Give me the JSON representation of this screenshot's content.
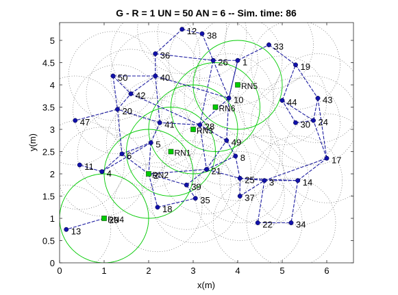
{
  "chart_data": {
    "type": "scatter",
    "title": "G - R = 1 UN = 50 AN = 6 -- Sim. time: 86",
    "xlabel": "x(m)",
    "ylabel": "y(m)",
    "xlim": [
      0,
      6.6
    ],
    "ylim": [
      0,
      5.4
    ],
    "xticks": [
      0,
      1,
      2,
      3,
      4,
      5,
      6
    ],
    "yticks": [
      0,
      0.5,
      1,
      1.5,
      2,
      2.5,
      3,
      3.5,
      4,
      4.5,
      5
    ],
    "grid": false,
    "colors": {
      "user": "#1111aa",
      "anchor": "#00cc00",
      "link": "#1a1aa0",
      "range": "#666666",
      "anchor_range": "#00cc00"
    },
    "nodes": [
      {
        "label": "1",
        "x": 4.0,
        "y": 4.55
      },
      {
        "label": "3",
        "x": 4.6,
        "y": 1.85
      },
      {
        "label": "4",
        "x": 0.95,
        "y": 2.05
      },
      {
        "label": "5",
        "x": 2.05,
        "y": 2.7
      },
      {
        "label": "6",
        "x": 1.4,
        "y": 2.45
      },
      {
        "label": "8",
        "x": 3.95,
        "y": 2.4
      },
      {
        "label": "10",
        "x": 3.8,
        "y": 3.7
      },
      {
        "label": "11",
        "x": 0.45,
        "y": 2.2
      },
      {
        "label": "12",
        "x": 2.75,
        "y": 5.25
      },
      {
        "label": "13",
        "x": 0.15,
        "y": 0.75
      },
      {
        "label": "14",
        "x": 5.35,
        "y": 1.85
      },
      {
        "label": "17",
        "x": 6.0,
        "y": 2.35
      },
      {
        "label": "18",
        "x": 2.2,
        "y": 1.25
      },
      {
        "label": "19",
        "x": 5.3,
        "y": 4.45
      },
      {
        "label": "20",
        "x": 1.3,
        "y": 3.45
      },
      {
        "label": "21",
        "x": 3.3,
        "y": 2.1
      },
      {
        "label": "22",
        "x": 4.45,
        "y": 0.9
      },
      {
        "label": "24",
        "x": 5.7,
        "y": 3.2
      },
      {
        "label": "25",
        "x": 4.05,
        "y": 1.9
      },
      {
        "label": "26",
        "x": 3.45,
        "y": 4.55
      },
      {
        "label": "28",
        "x": 3.15,
        "y": 3.1
      },
      {
        "label": "29",
        "x": 1.0,
        "y": 1.0
      },
      {
        "label": "30",
        "x": 5.3,
        "y": 3.15
      },
      {
        "label": "33",
        "x": 4.7,
        "y": 4.9
      },
      {
        "label": "34",
        "x": 5.2,
        "y": 0.9
      },
      {
        "label": "35",
        "x": 3.05,
        "y": 1.45
      },
      {
        "label": "36",
        "x": 2.15,
        "y": 4.7
      },
      {
        "label": "37",
        "x": 4.05,
        "y": 1.5
      },
      {
        "label": "38",
        "x": 3.2,
        "y": 5.15
      },
      {
        "label": "39",
        "x": 2.85,
        "y": 1.75
      },
      {
        "label": "40",
        "x": 2.15,
        "y": 4.2
      },
      {
        "label": "41",
        "x": 2.25,
        "y": 3.15
      },
      {
        "label": "42",
        "x": 1.6,
        "y": 3.8
      },
      {
        "label": "43",
        "x": 5.8,
        "y": 3.7
      },
      {
        "label": "44",
        "x": 5.0,
        "y": 3.65
      },
      {
        "label": "47",
        "x": 0.35,
        "y": 3.2
      },
      {
        "label": "49",
        "x": 3.75,
        "y": 2.75
      },
      {
        "label": "50",
        "x": 1.2,
        "y": 4.2
      },
      {
        "label": "2",
        "x": 2.0,
        "y": 2.0
      }
    ],
    "anchors": [
      {
        "label": "RN1",
        "x": 2.5,
        "y": 2.5
      },
      {
        "label": "RN2",
        "x": 2.0,
        "y": 2.0
      },
      {
        "label": "RN3",
        "x": 3.0,
        "y": 3.0
      },
      {
        "label": "RN4",
        "x": 1.0,
        "y": 1.0
      },
      {
        "label": "RN5",
        "x": 4.0,
        "y": 4.0
      },
      {
        "label": "RN6",
        "x": 3.5,
        "y": 3.5
      }
    ],
    "links": [
      [
        12,
        38
      ],
      [
        38,
        26
      ],
      [
        26,
        1
      ],
      [
        1,
        33
      ],
      [
        33,
        19
      ],
      [
        19,
        43
      ],
      [
        43,
        24
      ],
      [
        24,
        30
      ],
      [
        30,
        44
      ],
      [
        44,
        19
      ],
      [
        26,
        10
      ],
      [
        10,
        1
      ],
      [
        10,
        28
      ],
      [
        28,
        41
      ],
      [
        41,
        20
      ],
      [
        20,
        42
      ],
      [
        42,
        40
      ],
      [
        40,
        36
      ],
      [
        36,
        26
      ],
      [
        36,
        12
      ],
      [
        50,
        20
      ],
      [
        50,
        40
      ],
      [
        50,
        42
      ],
      [
        20,
        47
      ],
      [
        20,
        6
      ],
      [
        6,
        4
      ],
      [
        4,
        11
      ],
      [
        6,
        5
      ],
      [
        5,
        41
      ],
      [
        5,
        2
      ],
      [
        2,
        39
      ],
      [
        2,
        18
      ],
      [
        18,
        35
      ],
      [
        39,
        21
      ],
      [
        21,
        49
      ],
      [
        49,
        28
      ],
      [
        49,
        8
      ],
      [
        8,
        25
      ],
      [
        25,
        3
      ],
      [
        3,
        22
      ],
      [
        25,
        37
      ],
      [
        37,
        3
      ],
      [
        3,
        14
      ],
      [
        14,
        34
      ],
      [
        22,
        34
      ],
      [
        14,
        17
      ],
      [
        17,
        43
      ],
      [
        17,
        24
      ],
      [
        21,
        25
      ],
      [
        8,
        21
      ],
      [
        28,
        21
      ],
      [
        41,
        40
      ],
      [
        42,
        28
      ],
      [
        40,
        10
      ],
      [
        26,
        28
      ],
      [
        1,
        10
      ],
      [
        5,
        4
      ],
      [
        2,
        6
      ],
      [
        29,
        13
      ],
      [
        39,
        35
      ],
      [
        21,
        2
      ],
      [
        49,
        10
      ],
      [
        44,
        24
      ],
      [
        25,
        14
      ],
      [
        3,
        17
      ]
    ]
  },
  "text": {
    "title": "G - R = 1 UN = 50 AN = 6 -- Sim. time: 86",
    "xlabel": "x(m)",
    "ylabel": "y(m)"
  }
}
